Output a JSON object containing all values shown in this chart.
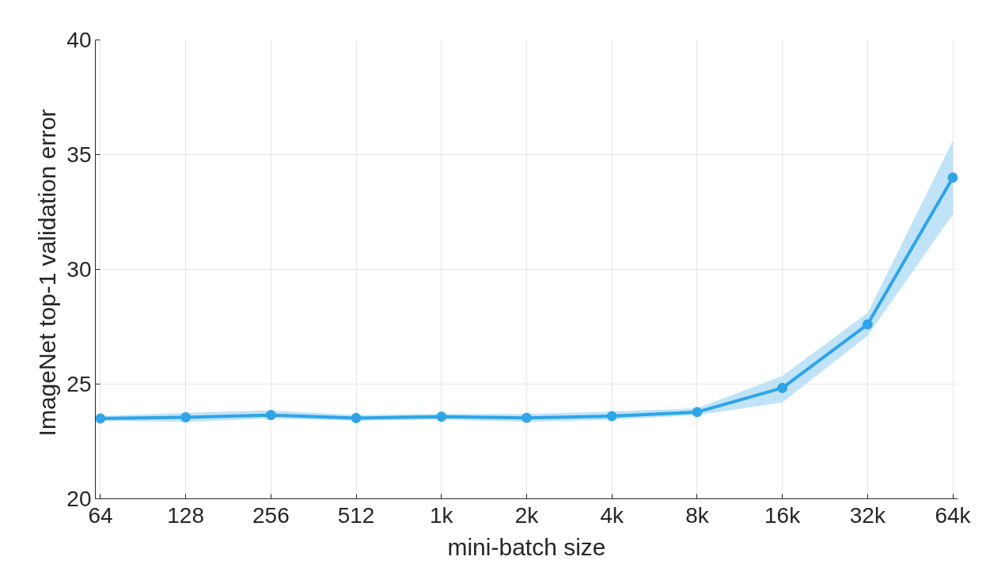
{
  "chart_data": {
    "type": "line",
    "xlabel": "mini-batch size",
    "ylabel": "ImageNet top-1  validation error",
    "categories": [
      "64",
      "128",
      "256",
      "512",
      "1k",
      "2k",
      "4k",
      "8k",
      "16k",
      "32k",
      "64k"
    ],
    "series": [
      {
        "color": "#2fa4e7",
        "values": [
          23.5,
          23.55,
          23.65,
          23.52,
          23.58,
          23.53,
          23.6,
          23.78,
          24.83,
          27.6,
          34.0
        ],
        "lower": [
          23.4,
          23.35,
          23.5,
          23.4,
          23.45,
          23.35,
          23.45,
          23.65,
          24.2,
          27.1,
          32.4
        ],
        "upper": [
          23.6,
          23.75,
          23.85,
          23.65,
          23.7,
          23.7,
          23.8,
          23.95,
          25.35,
          28.1,
          35.6
        ]
      }
    ],
    "ylim": [
      20,
      40
    ],
    "yticks": [
      20,
      25,
      30,
      35,
      40
    ],
    "grid": true,
    "marker": "circle",
    "line_style": "solid"
  }
}
